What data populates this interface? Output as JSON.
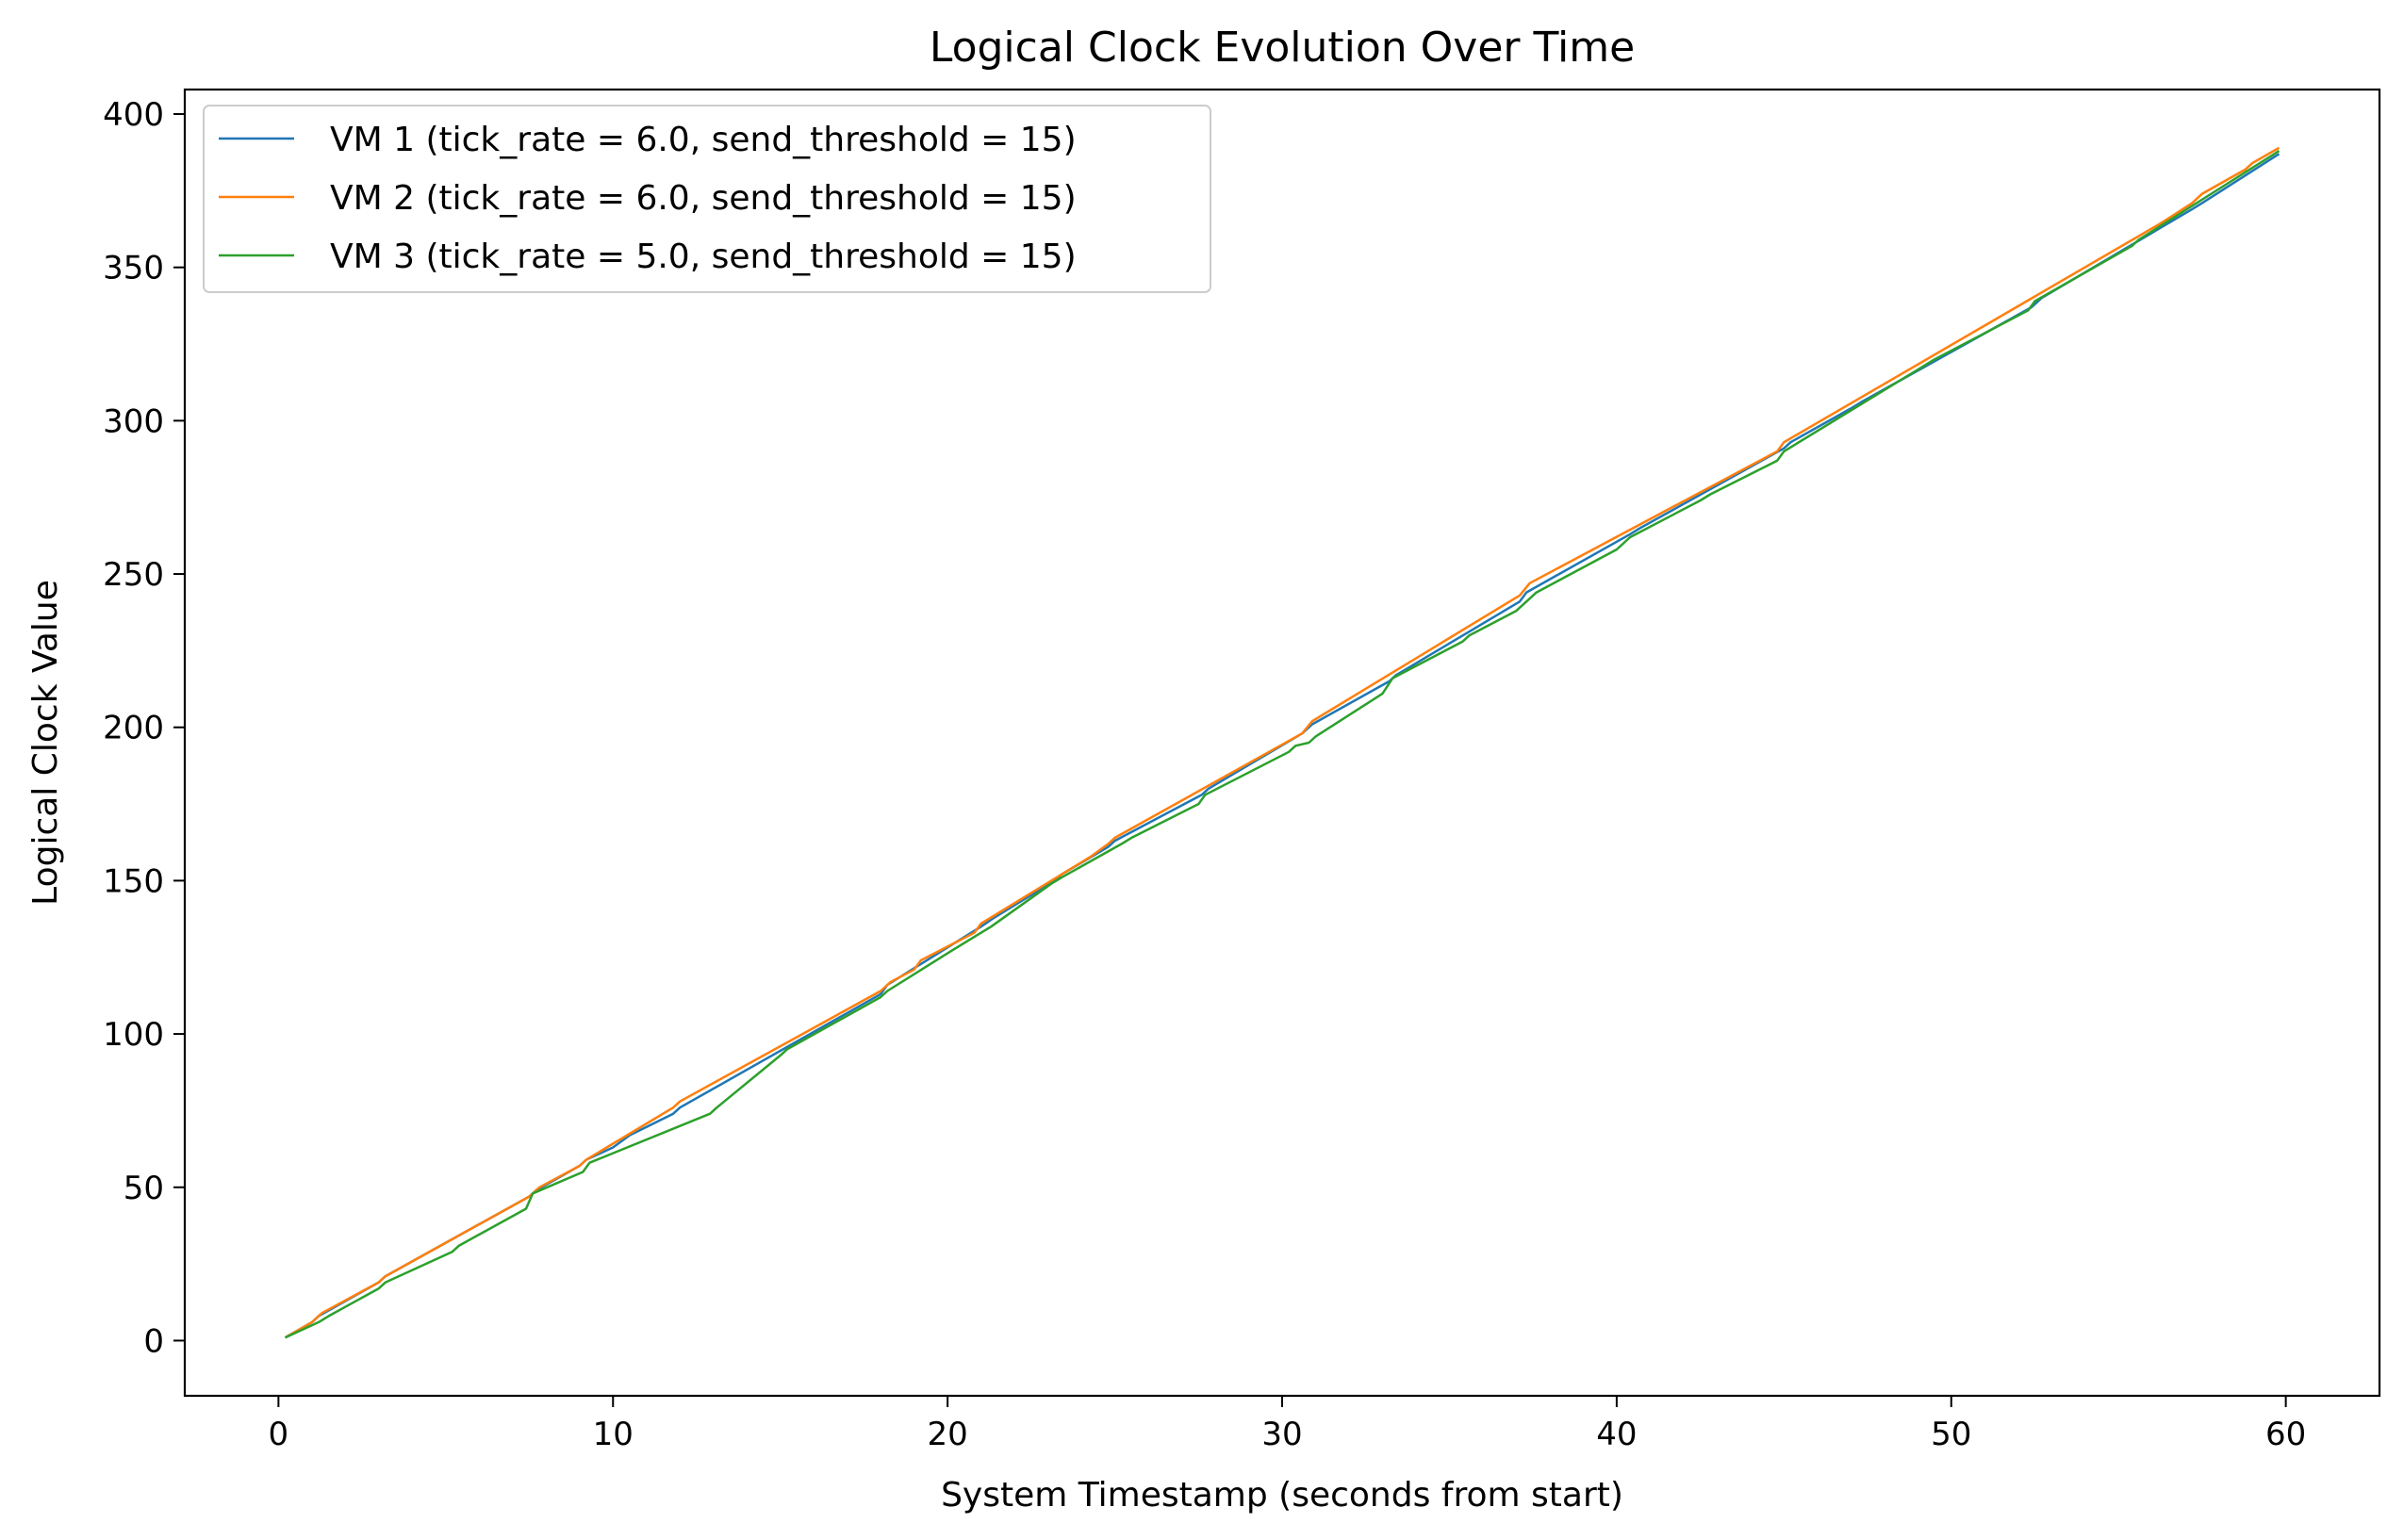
{
  "chart_data": {
    "type": "line",
    "title": "Logical Clock Evolution Over Time",
    "xlabel": "System Timestamp (seconds from start)",
    "ylabel": "Logical Clock Value",
    "xlim": [
      -2.8,
      62.8
    ],
    "ylim": [
      -18,
      408
    ],
    "xticks": [
      0,
      10,
      20,
      30,
      40,
      50,
      60
    ],
    "yticks": [
      0,
      50,
      100,
      150,
      200,
      250,
      300,
      350,
      400
    ],
    "grid": false,
    "legend_position": "upper-left",
    "series": [
      {
        "name": "VM 1 (tick_rate = 6.0, send_threshold = 15)",
        "color": "#1f77b4",
        "x": [
          0.2,
          1.0,
          1.2,
          3.0,
          3.2,
          7.5,
          7.7,
          9.0,
          9.2,
          10.0,
          10.5,
          11.8,
          12.0,
          18.0,
          18.2,
          21.0,
          21.4,
          23.2,
          23.4,
          24.8,
          25.0,
          27.6,
          27.8,
          30.6,
          30.9,
          33.2,
          33.4,
          37.1,
          37.3,
          40.4,
          40.7,
          45.0,
          45.2,
          47.0,
          47.3,
          52.4,
          52.7,
          57.2,
          57.5,
          59.8
        ],
        "y": [
          1,
          6,
          8,
          19,
          21,
          47,
          49,
          57,
          59,
          63,
          67,
          74,
          76,
          113,
          116,
          135,
          138,
          150,
          152,
          161,
          163,
          178,
          180,
          198,
          201,
          215,
          217,
          241,
          244,
          263,
          265,
          291,
          293,
          304,
          306,
          337,
          340,
          369,
          371,
          387
        ]
      },
      {
        "name": "VM 2 (tick_rate = 6.0, send_threshold = 15)",
        "color": "#ff7f0e",
        "x": [
          0.2,
          1.0,
          1.3,
          3.0,
          3.2,
          7.5,
          7.8,
          9.0,
          9.2,
          11.8,
          12.0,
          18.0,
          18.3,
          19.0,
          19.2,
          20.8,
          21.0,
          24.0,
          24.3,
          24.8,
          25.0,
          30.6,
          30.9,
          37.1,
          37.4,
          44.8,
          45.0,
          56.2,
          56.5,
          57.2,
          57.5,
          58.8,
          59.0,
          59.8
        ],
        "y": [
          1,
          6,
          9,
          19,
          21,
          47,
          50,
          57,
          59,
          76,
          78,
          114,
          117,
          121,
          124,
          133,
          136,
          156,
          158,
          162,
          164,
          198,
          202,
          243,
          247,
          290,
          293,
          364,
          366,
          371,
          374,
          382,
          384,
          389
        ]
      },
      {
        "name": "VM 3 (tick_rate = 5.0, send_threshold = 15)",
        "color": "#2ca02c",
        "x": [
          0.2,
          1.2,
          1.5,
          3.0,
          3.2,
          5.2,
          5.4,
          7.4,
          7.6,
          9.1,
          9.3,
          12.9,
          13.1,
          15.0,
          15.2,
          18.0,
          18.2,
          20.1,
          20.4,
          21.0,
          21.3,
          23.1,
          23.4,
          25.2,
          25.5,
          27.5,
          27.7,
          30.2,
          30.4,
          30.8,
          31.0,
          33.0,
          33.3,
          35.4,
          35.6,
          37.0,
          37.3,
          37.6,
          40.0,
          40.4,
          42.5,
          42.8,
          44.8,
          45.0,
          49.2,
          49.5,
          52.3,
          52.5,
          55.4,
          55.6,
          59.8
        ],
        "y": [
          1,
          6,
          8,
          17,
          19,
          29,
          31,
          43,
          48,
          55,
          58,
          74,
          76,
          93,
          95,
          112,
          114,
          127,
          129,
          133,
          135,
          149,
          151,
          162,
          164,
          175,
          178,
          192,
          194,
          195,
          197,
          211,
          216,
          228,
          230,
          238,
          241,
          244,
          258,
          262,
          274,
          276,
          287,
          290,
          318,
          320,
          336,
          339,
          357,
          359,
          388
        ]
      }
    ]
  }
}
